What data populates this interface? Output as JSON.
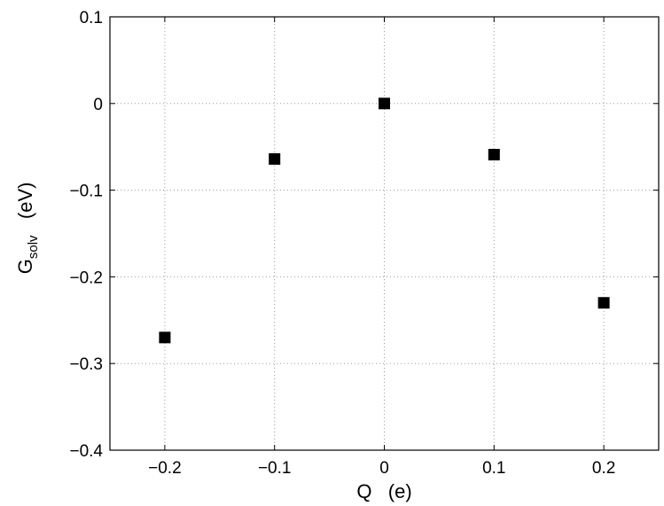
{
  "chart_data": {
    "type": "scatter",
    "title": "",
    "xlabel": "Q   (e)",
    "ylabel": {
      "main": "G",
      "subscript": "solv",
      "unit": "(eV)"
    },
    "xlim": [
      -0.25,
      0.25
    ],
    "ylim": [
      -0.4,
      0.1
    ],
    "x_ticks": [
      -0.2,
      -0.1,
      0,
      0.1,
      0.2
    ],
    "x_tick_labels": [
      "−0.2",
      "−0.1",
      "0",
      "0.1",
      "0.2"
    ],
    "y_ticks": [
      -0.4,
      -0.3,
      -0.2,
      -0.1,
      0,
      0.1
    ],
    "y_tick_labels": [
      "−0.4",
      "−0.3",
      "−0.2",
      "−0.1",
      "0",
      "0.1"
    ],
    "grid": true,
    "marker": "square",
    "marker_color": "#000000",
    "points": [
      {
        "x": -0.2,
        "y": -0.27
      },
      {
        "x": -0.1,
        "y": -0.064
      },
      {
        "x": 0.0,
        "y": 0.0
      },
      {
        "x": 0.1,
        "y": -0.059
      },
      {
        "x": 0.2,
        "y": -0.23
      }
    ]
  }
}
